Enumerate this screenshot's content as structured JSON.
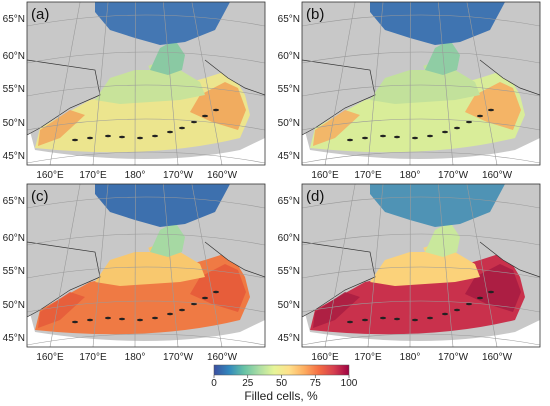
{
  "panels": [
    {
      "id": "a",
      "label": "(a)",
      "colors": {
        "north": "#4477b3",
        "strait": "#8ac9a3",
        "shelf": "#c8e39a",
        "south": "#ece58e",
        "coast": "#f2a55a"
      }
    },
    {
      "id": "b",
      "label": "(b)",
      "colors": {
        "north": "#3f74b1",
        "strait": "#8fcda4",
        "shelf": "#c2e19b",
        "south": "#d9ed99",
        "coast": "#f6ad60"
      }
    },
    {
      "id": "c",
      "label": "(c)",
      "colors": {
        "north": "#3d70ae",
        "strait": "#a6d9a3",
        "shelf": "#f8c86e",
        "south": "#ef7a44",
        "coast": "#e55a3a"
      }
    },
    {
      "id": "d",
      "label": "(d)",
      "colors": {
        "north": "#4f93b5",
        "strait": "#c9e89c",
        "shelf": "#fbd27a",
        "south": "#c9314c",
        "coast": "#a91d42"
      }
    }
  ],
  "lat_labels": [
    "45°N",
    "50°N",
    "55°N",
    "60°N",
    "65°N"
  ],
  "lon_labels": [
    "160°E",
    "170°E",
    "180°",
    "170°W",
    "160°W"
  ],
  "colorbar": {
    "ticks": [
      "0",
      "25",
      "50",
      "75",
      "100"
    ],
    "title": "Filled cells, %",
    "colors": [
      "#3b4fa0",
      "#3288bd",
      "#66c2a5",
      "#abdda4",
      "#e6f598",
      "#fee08b",
      "#fdae61",
      "#f46d43",
      "#d53e4f",
      "#9e0142"
    ]
  },
  "land_color": "#c8c8c8",
  "ocean_bg": "#ffffff"
}
